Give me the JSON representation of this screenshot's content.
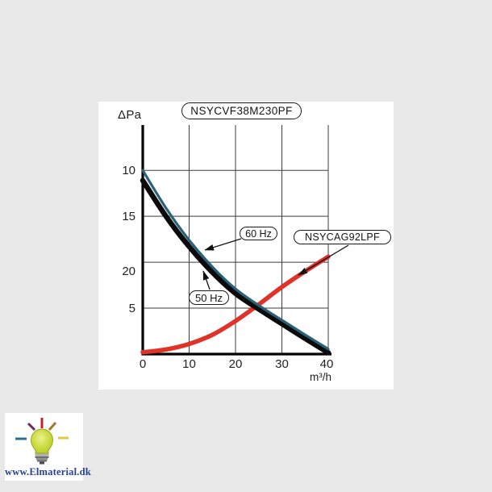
{
  "page": {
    "background_color": "#e9e9e9",
    "panel_color": "#ffffff"
  },
  "chart_data": {
    "type": "line",
    "title": "NSYCVF38M230PF",
    "ylabel": "ΔPa",
    "xlabel": "m³/h",
    "xlim": [
      0,
      40
    ],
    "ylim": [
      0,
      25
    ],
    "xticks": [
      0,
      10,
      20,
      30,
      40
    ],
    "yticks": [
      5,
      10,
      15,
      20
    ],
    "grid": true,
    "legend_position": "callouts-on-plot",
    "x": [
      0,
      5,
      10,
      15,
      20,
      25,
      30,
      35,
      40
    ],
    "series": [
      {
        "name": "NSYCAG92LPF",
        "color": "#e03228",
        "stroke_width": 5.5,
        "values": [
          0.2,
          0.5,
          1.1,
          2.1,
          3.6,
          5.4,
          7.3,
          9.0,
          10.6
        ]
      },
      {
        "name": "50 Hz",
        "color": "#0b0b0e",
        "stroke_width": 6.5,
        "values": [
          18.9,
          15.0,
          11.7,
          8.9,
          6.6,
          4.9,
          3.3,
          1.7,
          0.15
        ]
      },
      {
        "name": "60 Hz",
        "color": "#2a6378",
        "stroke_width": 3.2,
        "values": [
          20.0,
          15.9,
          12.4,
          9.5,
          7.1,
          5.3,
          3.7,
          2.1,
          0.55
        ]
      }
    ]
  },
  "labels": {
    "title": "NSYCVF38M230PF",
    "y_axis": "ΔPa",
    "x_unit": "m³/h",
    "callout_60": "60 Hz",
    "callout_50": "50 Hz",
    "callout_red": "NSYCAG92LPF"
  },
  "axis_ticks": {
    "y": [
      "20",
      "15",
      "10",
      "5"
    ],
    "x": [
      "0",
      "10",
      "20",
      "30",
      "40"
    ]
  },
  "logo": {
    "text": "www.Elmaterial.dk",
    "text_color": "#27409b",
    "icon": "lightbulb-icon",
    "ray_colors": [
      "#c6212e",
      "#a5762f",
      "#e3c83c",
      "#6e2a5c",
      "#2e6e8e"
    ],
    "bulb_color": "#c6d839"
  }
}
